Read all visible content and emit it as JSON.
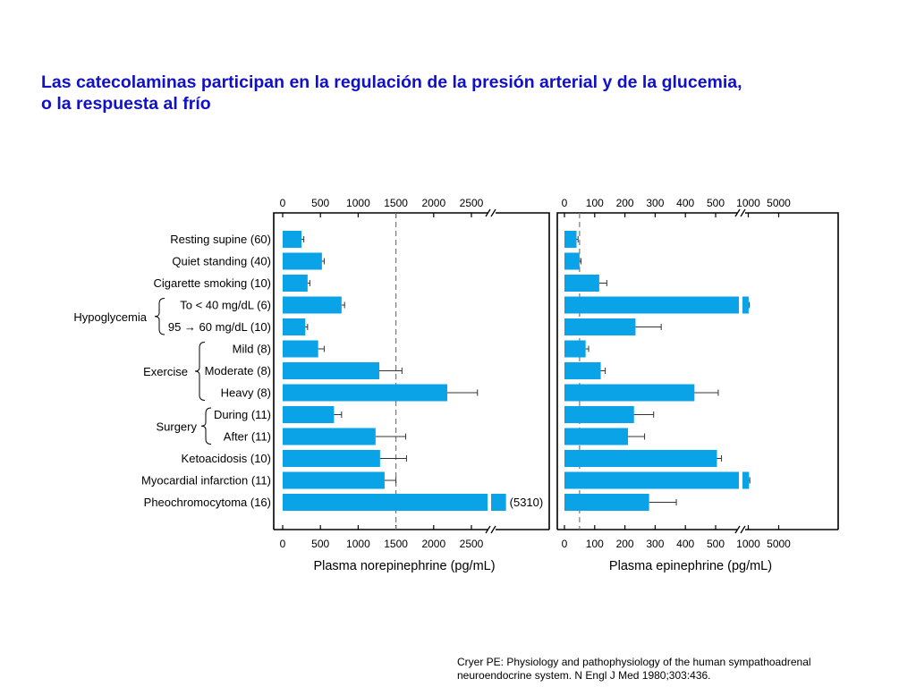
{
  "slide": {
    "title_line1": "Las catecolaminas participan en la regulación de la presión arterial y de la glucemia,",
    "title_line2": "o la respuesta al frío",
    "citation_line1": "Cryer PE: Physiology and pathophysiology of the human sympathoadrenal",
    "citation_line2": "neuroendocrine system. N Engl J Med 1980;303:436."
  },
  "colors": {
    "bar": "#0ba3e8",
    "title": "#1010c8",
    "axis": "#000000",
    "ref_line": "#777777"
  },
  "chart_data": {
    "type": "bar",
    "orientation": "horizontal",
    "categories": [
      "Resting supine (60)",
      "Quiet standing (40)",
      "Cigarette smoking (10)",
      "To < 40 mg/dL (6)",
      "95 → 60 mg/dL (10)",
      "Mild (8)",
      "Moderate (8)",
      "Heavy (8)",
      "During (11)",
      "After (11)",
      "Ketoacidosis (10)",
      "Myocardial infarction (11)",
      "Pheochromocytoma (16)"
    ],
    "groups": [
      {
        "label": "Hypoglycemia",
        "from": 3,
        "to": 4
      },
      {
        "label": "Exercise",
        "from": 5,
        "to": 7
      },
      {
        "label": "Surgery",
        "from": 8,
        "to": 9
      }
    ],
    "series": [
      {
        "name": "Plasma norepinephrine (pg/mL)",
        "xlabel": "Plasma norepinephrine (pg/mL)",
        "values": [
          250,
          520,
          330,
          780,
          300,
          470,
          1280,
          2180,
          680,
          1230,
          1290,
          1350,
          5310
        ],
        "errors": [
          30,
          30,
          30,
          40,
          30,
          80,
          300,
          400,
          100,
          400,
          350,
          150,
          null
        ],
        "value_labels": [
          "",
          "",
          "",
          "",
          "",
          "",
          "",
          "",
          "",
          "",
          "",
          "",
          "(5310)"
        ],
        "ticks": [
          0,
          500,
          1000,
          1500,
          2000,
          2500
        ],
        "tick_labels": [
          "0",
          "500",
          "1000",
          "1500",
          "2000",
          "2500"
        ],
        "axis_break": true,
        "reference_line": 1500
      },
      {
        "name": "Plasma epinephrine (pg/mL)",
        "xlabel": "Plasma epinephrine (pg/mL)",
        "values": [
          40,
          50,
          115,
          1050,
          235,
          70,
          120,
          430,
          230,
          210,
          520,
          1100,
          280
        ],
        "errors": [
          5,
          5,
          25,
          90,
          85,
          10,
          15,
          110,
          65,
          55,
          70,
          100,
          90
        ],
        "value_labels": [
          "",
          "",
          "",
          "",
          "",
          "",
          "",
          "",
          "",
          "",
          "",
          "",
          ""
        ],
        "ticks": [
          0,
          100,
          200,
          300,
          400,
          500,
          1000,
          5000
        ],
        "tick_labels": [
          "0",
          "100",
          "200",
          "300",
          "400",
          "500",
          "1000",
          "5000"
        ],
        "axis_break": true,
        "reference_line": 50
      }
    ]
  }
}
